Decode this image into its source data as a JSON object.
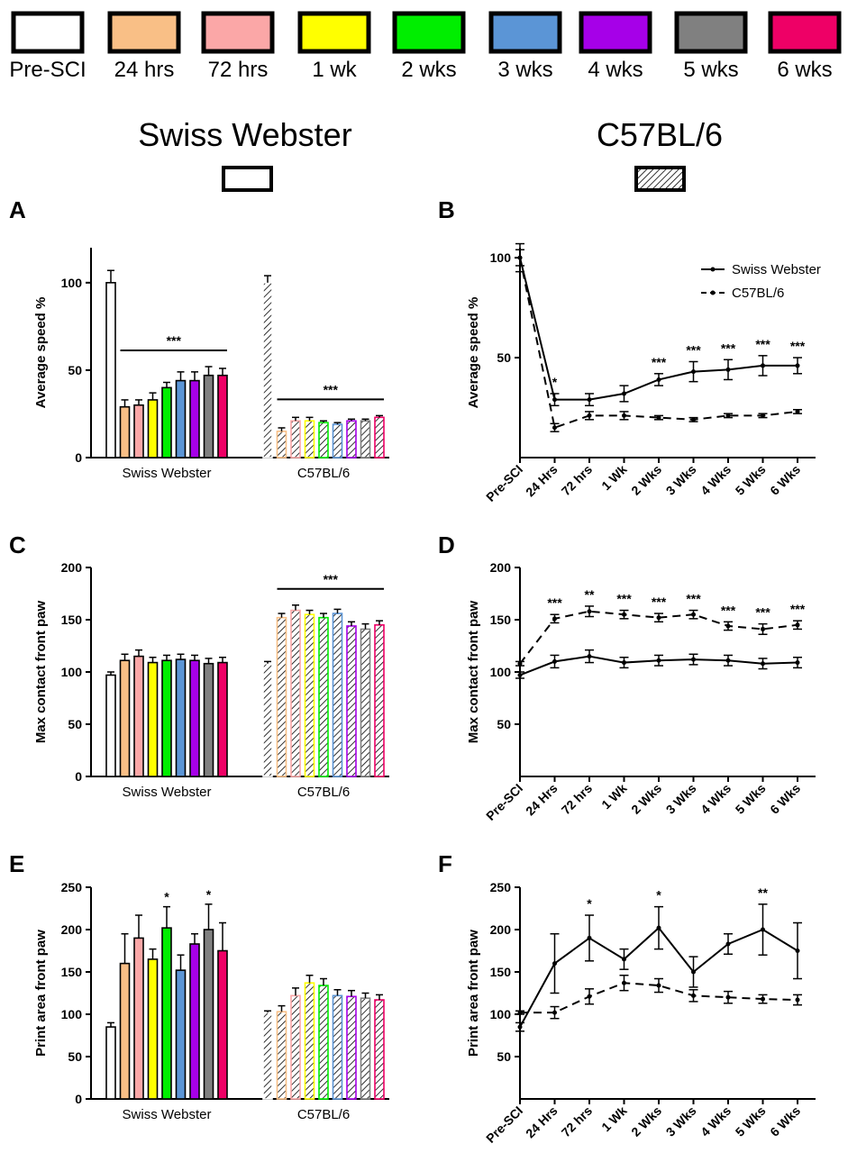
{
  "legend": {
    "items": [
      {
        "label": "Pre-SCI",
        "color": "#ffffff"
      },
      {
        "label": "24 hrs",
        "color": "#f9bf86"
      },
      {
        "label": "72 hrs",
        "color": "#fba7a7"
      },
      {
        "label": "1 wk",
        "color": "#ffff00"
      },
      {
        "label": "2 wks",
        "color": "#00ee00"
      },
      {
        "label": "3 wks",
        "color": "#5b95d6"
      },
      {
        "label": "4 wks",
        "color": "#a600e8"
      },
      {
        "label": "5 wks",
        "color": "#808080"
      },
      {
        "label": "6 wks",
        "color": "#ee0066"
      }
    ]
  },
  "strains": [
    {
      "name": "Swiss Webster",
      "pattern": "solid"
    },
    {
      "name": "C57BL/6",
      "pattern": "hatched"
    }
  ],
  "chart_data": [
    {
      "panel": "A",
      "type": "bar",
      "ylabel": "Average speed %",
      "ylim": [
        0,
        120
      ],
      "yticks": [
        0,
        50,
        100
      ],
      "groups": [
        "Swiss Webster",
        "C57BL/6"
      ],
      "categories": [
        "Pre-SCI",
        "24 hrs",
        "72 hrs",
        "1 wk",
        "2 wks",
        "3 wks",
        "4 wks",
        "5 wks",
        "6 wks"
      ],
      "series": [
        {
          "name": "Swiss Webster",
          "values": [
            100,
            29,
            30,
            33,
            40,
            44,
            44,
            47,
            47
          ],
          "errors": [
            7,
            4,
            3,
            4,
            3,
            5,
            5,
            5,
            4
          ]
        },
        {
          "name": "C57BL/6",
          "values": [
            100,
            15,
            21,
            21,
            20,
            19,
            21,
            21,
            23
          ],
          "errors": [
            4,
            2,
            2,
            2,
            1,
            1,
            1,
            1,
            1
          ]
        }
      ],
      "annotations": [
        {
          "group": 0,
          "text": "***"
        },
        {
          "group": 1,
          "text": "***"
        }
      ]
    },
    {
      "panel": "B",
      "type": "line",
      "ylabel": "Average speed %",
      "ylim": [
        0,
        105
      ],
      "yticks": [
        50,
        100
      ],
      "x": [
        "Pre-SCI",
        "24 Hrs",
        "72 hrs",
        "1 Wk",
        "2 Wks",
        "3 Wks",
        "4 Wks",
        "5 Wks",
        "6 Wks"
      ],
      "series": [
        {
          "name": "Swiss Webster",
          "style": "solid",
          "values": [
            100,
            29,
            29,
            32,
            39,
            43,
            44,
            46,
            46
          ],
          "errors": [
            7,
            3,
            3,
            4,
            3,
            5,
            5,
            5,
            4
          ]
        },
        {
          "name": "C57BL/6",
          "style": "dashed",
          "values": [
            100,
            15,
            21,
            21,
            20,
            19,
            21,
            21,
            23
          ],
          "errors": [
            4,
            2,
            2,
            2,
            1,
            1,
            1,
            1,
            1
          ]
        }
      ],
      "legend_position": "top-right",
      "annotations": [
        "",
        "*",
        "",
        "",
        "***",
        "***",
        "***",
        "***",
        "***"
      ]
    },
    {
      "panel": "C",
      "type": "bar",
      "ylabel": "Max contact front paw",
      "ylim": [
        0,
        200
      ],
      "yticks": [
        0,
        50,
        100,
        150,
        200
      ],
      "groups": [
        "Swiss Webster",
        "C57BL/6"
      ],
      "categories": [
        "Pre-SCI",
        "24 hrs",
        "72 hrs",
        "1 wk",
        "2 wks",
        "3 wks",
        "4 wks",
        "5 wks",
        "6 wks"
      ],
      "series": [
        {
          "name": "Swiss Webster",
          "values": [
            97,
            111,
            115,
            109,
            111,
            112,
            111,
            108,
            109
          ],
          "errors": [
            3,
            6,
            6,
            5,
            5,
            5,
            5,
            5,
            5
          ]
        },
        {
          "name": "C57BL/6",
          "values": [
            108,
            152,
            159,
            155,
            152,
            156,
            144,
            141,
            145
          ],
          "errors": [
            2,
            4,
            5,
            4,
            4,
            4,
            4,
            5,
            4
          ]
        }
      ],
      "annotations": [
        {
          "group": 1,
          "text": "***"
        }
      ]
    },
    {
      "panel": "D",
      "type": "line",
      "ylabel": "Max contact front paw",
      "ylim": [
        0,
        200
      ],
      "yticks": [
        50,
        100,
        150,
        200
      ],
      "x": [
        "Pre-SCI",
        "24 Hrs",
        "72 hrs",
        "1 Wk",
        "2 Wks",
        "3 Wks",
        "4 Wks",
        "5 Wks",
        "6 Wks"
      ],
      "series": [
        {
          "name": "Swiss Webster",
          "style": "solid",
          "values": [
            97,
            110,
            115,
            109,
            111,
            112,
            111,
            108,
            109
          ],
          "errors": [
            3,
            6,
            6,
            5,
            5,
            5,
            5,
            5,
            5
          ]
        },
        {
          "name": "C57BL/6",
          "style": "dashed",
          "values": [
            108,
            151,
            158,
            155,
            152,
            155,
            144,
            141,
            145
          ],
          "errors": [
            2,
            4,
            5,
            4,
            4,
            4,
            4,
            5,
            4
          ]
        }
      ],
      "annotations": [
        "",
        "***",
        "**",
        "***",
        "***",
        "***",
        "***",
        "***",
        "***"
      ]
    },
    {
      "panel": "E",
      "type": "bar",
      "ylabel": "Print area front paw",
      "ylim": [
        0,
        250
      ],
      "yticks": [
        0,
        50,
        100,
        150,
        200,
        250
      ],
      "groups": [
        "Swiss Webster",
        "C57BL/6"
      ],
      "categories": [
        "Pre-SCI",
        "24 hrs",
        "72 hrs",
        "1 wk",
        "2 wks",
        "3 wks",
        "4 wks",
        "5 wks",
        "6 wks"
      ],
      "series": [
        {
          "name": "Swiss Webster",
          "values": [
            85,
            160,
            190,
            165,
            202,
            152,
            183,
            200,
            175
          ],
          "errors": [
            5,
            35,
            27,
            12,
            25,
            18,
            12,
            30,
            33
          ]
        },
        {
          "name": "C57BL/6",
          "values": [
            102,
            103,
            122,
            137,
            134,
            122,
            121,
            119,
            117
          ],
          "errors": [
            2,
            7,
            9,
            9,
            8,
            7,
            7,
            6,
            6
          ]
        }
      ],
      "annotations": [
        {
          "group": 0,
          "index": 4,
          "text": "*"
        },
        {
          "group": 0,
          "index": 7,
          "text": "*"
        }
      ]
    },
    {
      "panel": "F",
      "type": "line",
      "ylabel": "Print area front paw",
      "ylim": [
        0,
        250
      ],
      "yticks": [
        50,
        100,
        150,
        200,
        250
      ],
      "x": [
        "Pre-SCI",
        "24 Hrs",
        "72 hrs",
        "1 Wk",
        "2 Wks",
        "3 Wks",
        "4 Wks",
        "5 Wks",
        "6 Wks"
      ],
      "series": [
        {
          "name": "Swiss Webster",
          "style": "solid",
          "values": [
            85,
            160,
            190,
            165,
            202,
            150,
            183,
            200,
            175
          ],
          "errors": [
            5,
            35,
            27,
            12,
            25,
            18,
            12,
            30,
            33
          ]
        },
        {
          "name": "C57BL/6",
          "style": "dashed",
          "values": [
            102,
            102,
            121,
            137,
            134,
            122,
            120,
            118,
            117
          ],
          "errors": [
            2,
            7,
            9,
            9,
            8,
            7,
            7,
            5,
            6
          ]
        }
      ],
      "annotations": [
        "",
        "",
        "*",
        "",
        "*",
        "",
        "",
        "**",
        ""
      ]
    }
  ]
}
